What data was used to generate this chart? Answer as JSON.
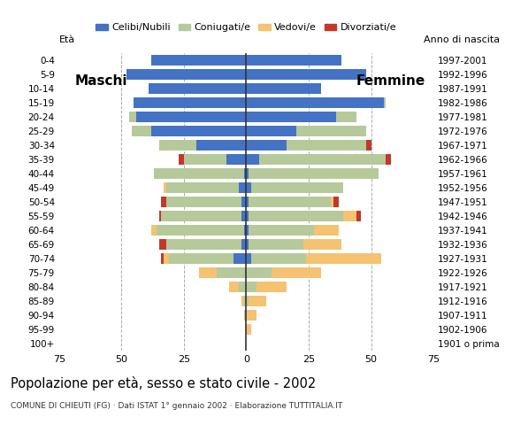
{
  "age_groups": [
    "100+",
    "95-99",
    "90-94",
    "85-89",
    "80-84",
    "75-79",
    "70-74",
    "65-69",
    "60-64",
    "55-59",
    "50-54",
    "45-49",
    "40-44",
    "35-39",
    "30-34",
    "25-29",
    "20-24",
    "15-19",
    "10-14",
    "5-9",
    "0-4"
  ],
  "birth_years": [
    "1901 o prima",
    "1902-1906",
    "1907-1911",
    "1912-1916",
    "1917-1921",
    "1922-1926",
    "1927-1931",
    "1932-1936",
    "1937-1941",
    "1942-1946",
    "1947-1951",
    "1952-1956",
    "1957-1961",
    "1962-1966",
    "1967-1971",
    "1972-1976",
    "1977-1981",
    "1982-1986",
    "1987-1991",
    "1992-1996",
    "1997-2001"
  ],
  "male": {
    "celibi": [
      0,
      0,
      0,
      0,
      0,
      0,
      5,
      2,
      1,
      2,
      2,
      3,
      1,
      8,
      20,
      38,
      44,
      45,
      39,
      48,
      38
    ],
    "coniugati": [
      0,
      0,
      1,
      1,
      3,
      12,
      26,
      30,
      35,
      32,
      30,
      29,
      36,
      17,
      15,
      8,
      3,
      0,
      0,
      0,
      0
    ],
    "vedovi": [
      0,
      0,
      0,
      1,
      4,
      7,
      2,
      0,
      2,
      0,
      0,
      1,
      0,
      0,
      0,
      0,
      0,
      0,
      0,
      0,
      0
    ],
    "divorziati": [
      0,
      0,
      0,
      0,
      0,
      0,
      1,
      3,
      0,
      1,
      2,
      0,
      0,
      2,
      0,
      0,
      0,
      0,
      0,
      0,
      0
    ]
  },
  "female": {
    "nubili": [
      0,
      0,
      0,
      0,
      0,
      0,
      2,
      1,
      1,
      1,
      1,
      2,
      1,
      5,
      16,
      20,
      36,
      55,
      30,
      48,
      38
    ],
    "coniugate": [
      0,
      0,
      0,
      1,
      4,
      10,
      22,
      22,
      26,
      38,
      33,
      37,
      52,
      51,
      32,
      28,
      8,
      1,
      0,
      0,
      0
    ],
    "vedove": [
      0,
      2,
      4,
      7,
      12,
      20,
      30,
      15,
      10,
      5,
      1,
      0,
      0,
      0,
      0,
      0,
      0,
      0,
      0,
      0,
      0
    ],
    "divorziate": [
      0,
      0,
      0,
      0,
      0,
      0,
      0,
      0,
      0,
      2,
      2,
      0,
      0,
      2,
      2,
      0,
      0,
      0,
      0,
      0,
      0
    ]
  },
  "colors": {
    "celibi": "#4472c4",
    "coniugati": "#b5c99a",
    "vedovi": "#f5c272",
    "divorziati": "#c0392b"
  },
  "xlim": 75,
  "title": "Popolazione per età, sesso e stato civile - 2002",
  "subtitle": "COMUNE DI CHIEUTI (FG) · Dati ISTAT 1° gennaio 2002 · Elaborazione TUTTITALIA.IT",
  "legend_labels": [
    "Celibi/Nubili",
    "Coniugati/e",
    "Vedovi/e",
    "Divorziati/e"
  ],
  "label_eta": "Età",
  "label_anno": "Anno di nascita",
  "label_maschi": "Maschi",
  "label_femmine": "Femmine",
  "background_color": "#ffffff",
  "grid_color": "#aaaaaa"
}
